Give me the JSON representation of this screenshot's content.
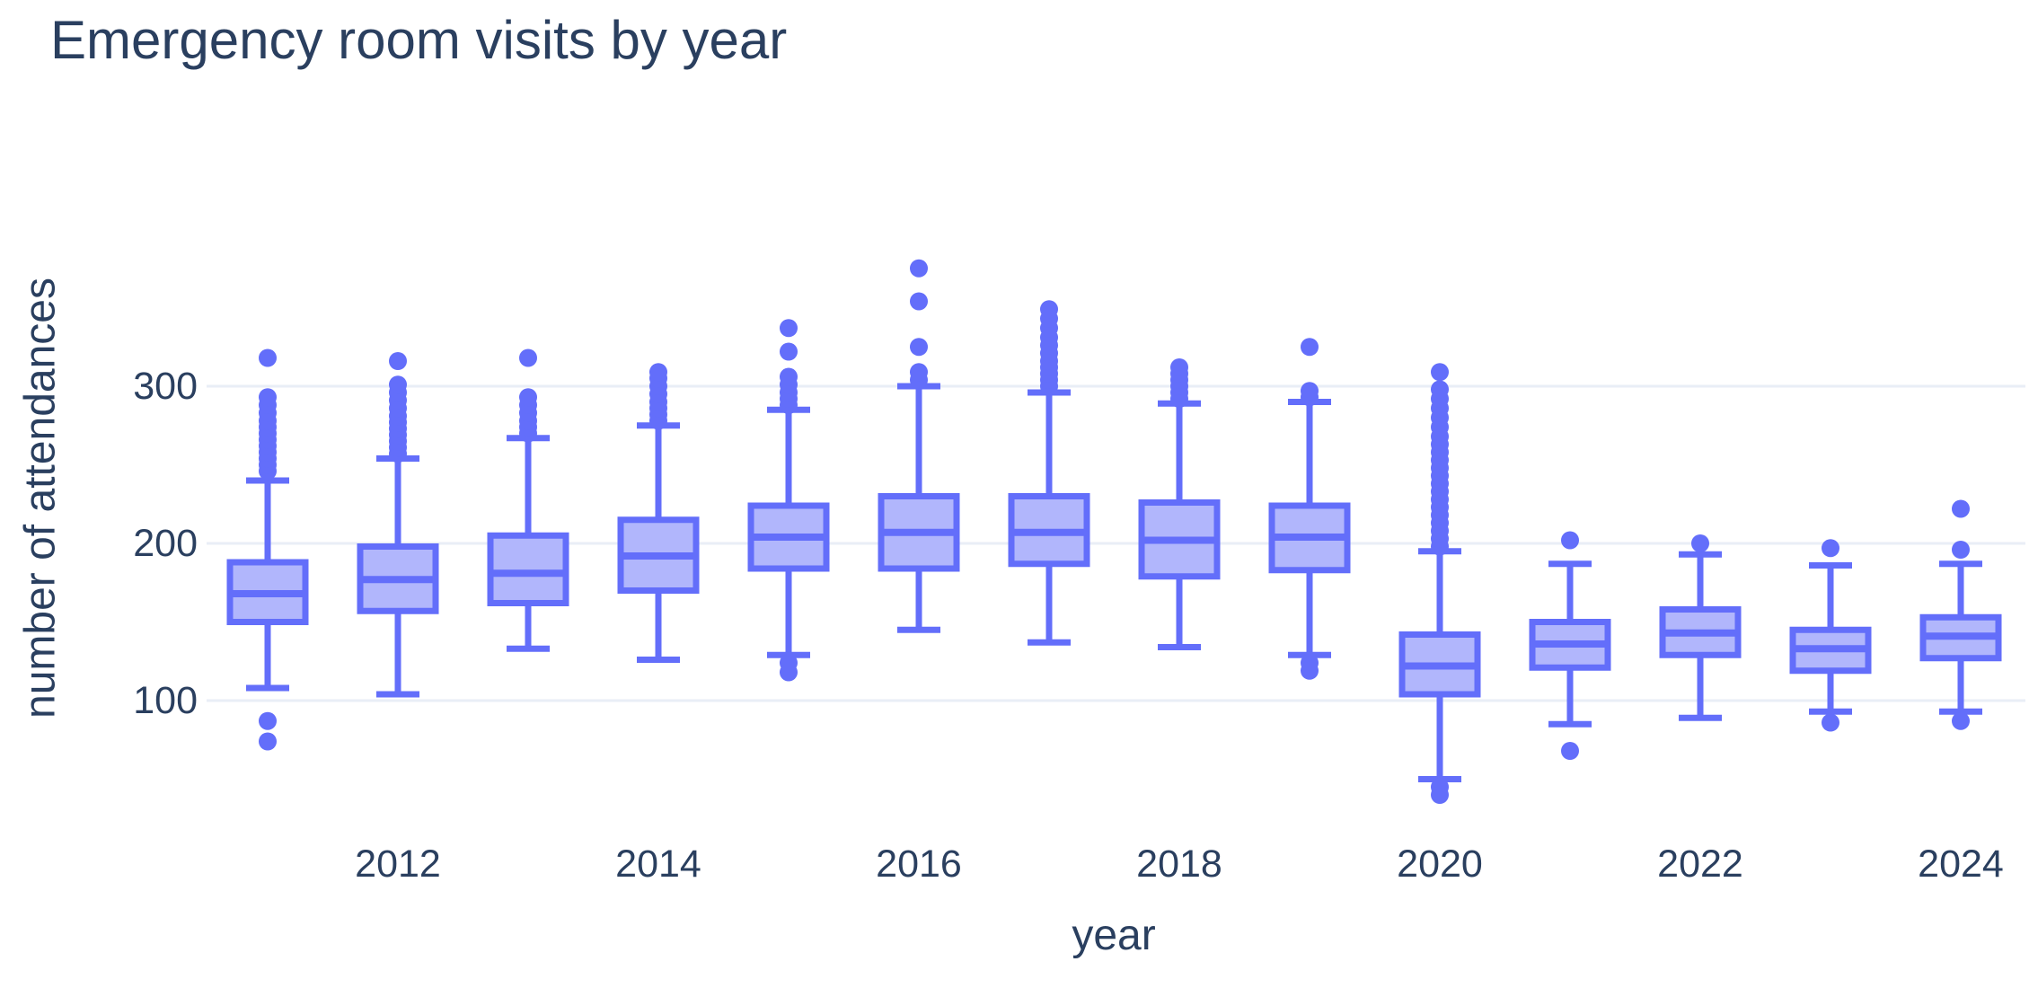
{
  "chart": {
    "title": "Emergency room visits by year",
    "x_label": "year",
    "y_label": "number of attendances"
  },
  "chart_data": {
    "type": "box",
    "title": "Emergency room visits by year",
    "xlabel": "year",
    "ylabel": "number of attendances",
    "x_tick_labels": [
      "2012",
      "2014",
      "2016",
      "2018",
      "2020",
      "2022",
      "2024"
    ],
    "y_tick_labels": [
      "100",
      "200",
      "300"
    ],
    "y_grid_values": [
      100,
      200,
      300
    ],
    "ylim": [
      20,
      443
    ],
    "grid": "horizontal",
    "legend": "none",
    "colors": {
      "line": "#636EFA",
      "box_fill": "#B1B6FC",
      "text": "#2A3F5F",
      "grid": "#E9EEF6",
      "background": "#FFFFFF"
    },
    "series": [
      {
        "year": 2011,
        "whisker_low": 108,
        "q1": 150,
        "median": 168,
        "q3": 188,
        "whisker_high": 240,
        "outliers_high": [
          246,
          250,
          254,
          258,
          262,
          266,
          270,
          274,
          278,
          283,
          288,
          293,
          318
        ],
        "outliers_low": [
          87,
          74
        ]
      },
      {
        "year": 2012,
        "whisker_low": 104,
        "q1": 157,
        "median": 177,
        "q3": 198,
        "whisker_high": 254,
        "outliers_high": [
          257,
          261,
          265,
          269,
          273,
          277,
          281,
          286,
          291,
          296,
          301,
          316
        ],
        "outliers_low": []
      },
      {
        "year": 2013,
        "whisker_low": 133,
        "q1": 162,
        "median": 181,
        "q3": 205,
        "whisker_high": 267,
        "outliers_high": [
          270,
          274,
          278,
          283,
          288,
          293,
          318
        ],
        "outliers_low": []
      },
      {
        "year": 2014,
        "whisker_low": 126,
        "q1": 170,
        "median": 192,
        "q3": 215,
        "whisker_high": 275,
        "outliers_high": [
          278,
          282,
          286,
          290,
          295,
          300,
          305,
          309
        ],
        "outliers_low": []
      },
      {
        "year": 2015,
        "whisker_low": 129,
        "q1": 184,
        "median": 204,
        "q3": 224,
        "whisker_high": 285,
        "outliers_high": [
          288,
          292,
          296,
          301,
          306,
          322,
          337
        ],
        "outliers_low": [
          124,
          118
        ]
      },
      {
        "year": 2016,
        "whisker_low": 145,
        "q1": 184,
        "median": 207,
        "q3": 230,
        "whisker_high": 300,
        "outliers_high": [
          304,
          309,
          325,
          354,
          375
        ],
        "outliers_low": []
      },
      {
        "year": 2017,
        "whisker_low": 137,
        "q1": 187,
        "median": 207,
        "q3": 230,
        "whisker_high": 296,
        "outliers_high": [
          300,
          304,
          308,
          312,
          316,
          321,
          326,
          331,
          337,
          343,
          349
        ],
        "outliers_low": []
      },
      {
        "year": 2018,
        "whisker_low": 134,
        "q1": 179,
        "median": 202,
        "q3": 226,
        "whisker_high": 289,
        "outliers_high": [
          292,
          296,
          300,
          304,
          308,
          312
        ],
        "outliers_low": []
      },
      {
        "year": 2019,
        "whisker_low": 129,
        "q1": 183,
        "median": 204,
        "q3": 224,
        "whisker_high": 290,
        "outliers_high": [
          293,
          297,
          325
        ],
        "outliers_low": [
          124,
          119
        ]
      },
      {
        "year": 2020,
        "whisker_low": 50,
        "q1": 104,
        "median": 122,
        "q3": 142,
        "whisker_high": 195,
        "outliers_high": [
          198,
          203,
          208,
          213,
          218,
          223,
          228,
          233,
          238,
          243,
          248,
          253,
          258,
          263,
          268,
          274,
          280,
          286,
          292,
          298,
          309
        ],
        "outliers_low": [
          45,
          40
        ]
      },
      {
        "year": 2021,
        "whisker_low": 85,
        "q1": 121,
        "median": 136,
        "q3": 150,
        "whisker_high": 187,
        "outliers_high": [
          202
        ],
        "outliers_low": [
          68
        ]
      },
      {
        "year": 2022,
        "whisker_low": 89,
        "q1": 129,
        "median": 143,
        "q3": 158,
        "whisker_high": 193,
        "outliers_high": [
          200
        ],
        "outliers_low": []
      },
      {
        "year": 2023,
        "whisker_low": 93,
        "q1": 119,
        "median": 133,
        "q3": 145,
        "whisker_high": 186,
        "outliers_high": [
          197
        ],
        "outliers_low": [
          86
        ]
      },
      {
        "year": 2024,
        "whisker_low": 93,
        "q1": 127,
        "median": 141,
        "q3": 153,
        "whisker_high": 187,
        "outliers_high": [
          196,
          222
        ],
        "outliers_low": [
          87
        ]
      }
    ]
  }
}
